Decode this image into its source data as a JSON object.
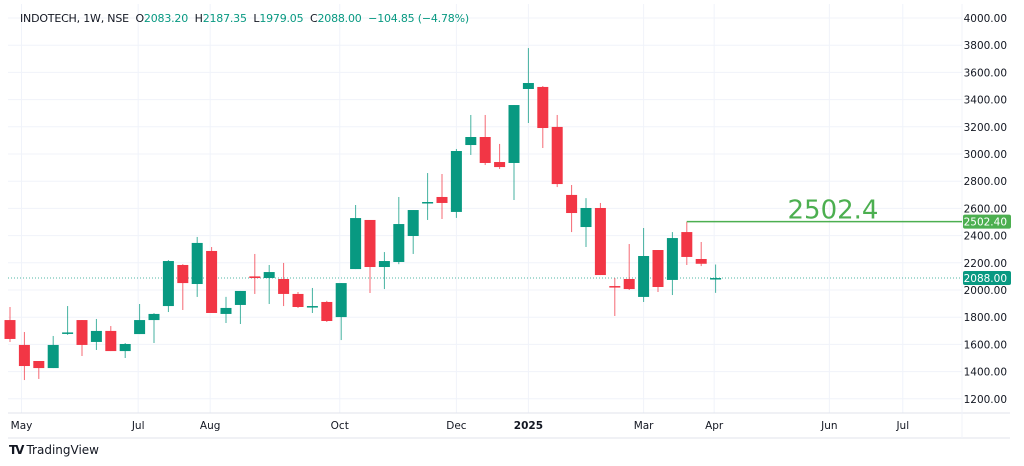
{
  "legend": {
    "symbol": "INDOTECH, 1W, NSE",
    "o_label": "O",
    "open": "2083.20",
    "h_label": "H",
    "high": "2187.35",
    "l_label": "L",
    "low": "1979.05",
    "c_label": "C",
    "close": "2088.00",
    "change": "−104.85 (−4.78%)"
  },
  "brand": {
    "logo": "TV",
    "name": "TradingView"
  },
  "colors": {
    "up": "#089981",
    "down": "#F23645",
    "line": "#4CAF50",
    "grid": "#F0F3FA",
    "text": "#131722"
  },
  "chart_data": {
    "type": "candlestick",
    "title": "INDOTECH, 1W, NSE",
    "ylim": [
      1100,
      4050
    ],
    "y_ticks": [
      "1200.00",
      "1400.00",
      "1600.00",
      "1800.00",
      "2000.00",
      "2200.00",
      "2400.00",
      "2600.00",
      "2800.00",
      "3000.00",
      "3200.00",
      "3400.00",
      "3600.00",
      "3800.00",
      "4000.00"
    ],
    "x_labels": [
      {
        "label": "May",
        "index": 0.8,
        "bold": false
      },
      {
        "label": "Jul",
        "index": 8.9,
        "bold": false
      },
      {
        "label": "Aug",
        "index": 13.9,
        "bold": false
      },
      {
        "label": "Oct",
        "index": 22.9,
        "bold": false
      },
      {
        "label": "Dec",
        "index": 31.0,
        "bold": false
      },
      {
        "label": "2025",
        "index": 36.0,
        "bold": true
      },
      {
        "label": "Mar",
        "index": 44.0,
        "bold": false
      },
      {
        "label": "Apr",
        "index": 48.9,
        "bold": false
      },
      {
        "label": "Jun",
        "index": 56.9,
        "bold": false
      },
      {
        "label": "Jul",
        "index": 62.0,
        "bold": false
      }
    ],
    "ohlc": [
      [
        1779,
        1875,
        1618,
        1640
      ],
      [
        1596,
        1691,
        1338,
        1441
      ],
      [
        1478,
        1478,
        1346,
        1426
      ],
      [
        1426,
        1662,
        1426,
        1596
      ],
      [
        1680,
        1882,
        1670,
        1688
      ],
      [
        1779,
        1779,
        1515,
        1596
      ],
      [
        1618,
        1787,
        1559,
        1699
      ],
      [
        1699,
        1735,
        1551,
        1551
      ],
      [
        1551,
        1610,
        1500,
        1603
      ],
      [
        1676,
        1897,
        1676,
        1779
      ],
      [
        1779,
        1830,
        1610,
        1824
      ],
      [
        1882,
        2220,
        1838,
        2213
      ],
      [
        2184,
        2190,
        1853,
        2051
      ],
      [
        2044,
        2390,
        1949,
        2346
      ],
      [
        2287,
        2316,
        1831,
        1831
      ],
      [
        1824,
        1949,
        1757,
        1868
      ],
      [
        1890,
        1993,
        1750,
        1993
      ],
      [
        2100,
        2265,
        1971,
        2088
      ],
      [
        2088,
        2184,
        1897,
        2132
      ],
      [
        2081,
        2199,
        1882,
        1971
      ],
      [
        1971,
        1985,
        1868,
        1875
      ],
      [
        1872,
        2015,
        1831,
        1882
      ],
      [
        1912,
        1920,
        1765,
        1772
      ],
      [
        1801,
        2051,
        1632,
        2051
      ],
      [
        2154,
        2625,
        2154,
        2529
      ],
      [
        2515,
        2515,
        1978,
        2169
      ],
      [
        2169,
        2279,
        2007,
        2213
      ],
      [
        2206,
        2684,
        2190,
        2485
      ],
      [
        2397,
        2588,
        2265,
        2588
      ],
      [
        2640,
        2860,
        2515,
        2647
      ],
      [
        2684,
        2853,
        2522,
        2640
      ],
      [
        2574,
        3037,
        2530,
        3022
      ],
      [
        3066,
        3287,
        2993,
        3125
      ],
      [
        3125,
        3287,
        2919,
        2934
      ],
      [
        2941,
        3074,
        2890,
        2904
      ],
      [
        2934,
        3360,
        2662,
        3360
      ],
      [
        3478,
        3779,
        3228,
        3522
      ],
      [
        3493,
        3500,
        3044,
        3191
      ],
      [
        3199,
        3287,
        2757,
        2779
      ],
      [
        2699,
        2772,
        2426,
        2566
      ],
      [
        2463,
        2676,
        2316,
        2603
      ],
      [
        2603,
        2640,
        2110,
        2110
      ],
      [
        2029,
        2088,
        1809,
        2022
      ],
      [
        2081,
        2338,
        2000,
        2007
      ],
      [
        1949,
        2456,
        1912,
        2250
      ],
      [
        2294,
        2294,
        1985,
        2022
      ],
      [
        2074,
        2426,
        1963,
        2382
      ],
      [
        2426,
        2502.4,
        2184,
        2243
      ],
      [
        2228,
        2353,
        2176,
        2192.85
      ],
      [
        2083.2,
        2187.35,
        1979.05,
        2088
      ]
    ],
    "horizontal_line": {
      "value": 2502.4,
      "text": "2502.4",
      "axis_label": "2502.40",
      "start_index": 47
    },
    "last_price": {
      "value": 2088,
      "axis_label": "2088.00"
    }
  }
}
